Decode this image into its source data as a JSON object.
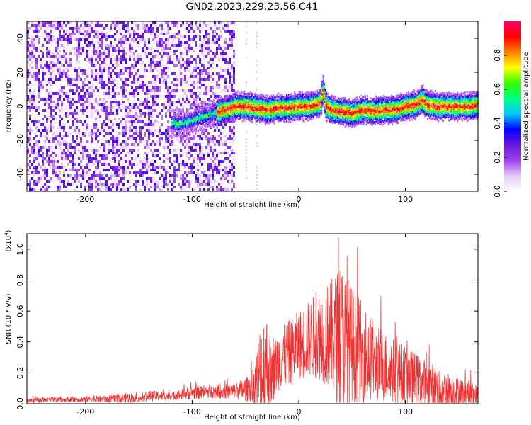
{
  "title": "GN02.2023.229.23.56.C41",
  "chart_data": [
    {
      "type": "heatmap",
      "name": "spectrogram",
      "xlabel": "Height of straight line (km)",
      "ylabel": "Frequency (Hz)",
      "xlim": [
        -255,
        168
      ],
      "ylim": [
        -50,
        50
      ],
      "x_ticks": [
        -200,
        -100,
        0,
        100
      ],
      "x_tick_labels": [
        "-200",
        "-100",
        "0",
        "100"
      ],
      "y_ticks": [
        -40,
        -20,
        0,
        20,
        40
      ],
      "y_tick_labels": [
        "-40",
        "-20",
        "0",
        "20",
        "40"
      ],
      "noise_region_x": [
        -255,
        -60
      ],
      "signal_start_x": -120,
      "signal_track": {
        "x": [
          -120,
          -110,
          -100,
          -90,
          -80,
          -70,
          -60,
          -50,
          -40,
          -30,
          -20,
          -10,
          0,
          10,
          20,
          22,
          25,
          30,
          40,
          50,
          60,
          70,
          80,
          90,
          100,
          110,
          115,
          120,
          130,
          140,
          150,
          160,
          168
        ],
        "freq": [
          -10,
          -10,
          -8,
          -6,
          -4,
          -2,
          0,
          0,
          -1,
          -2,
          -1,
          -1,
          0,
          0,
          2,
          10,
          0,
          -2,
          -3,
          -4,
          -2,
          -3,
          -2,
          -2,
          0,
          1,
          4,
          1,
          0,
          0,
          0,
          0,
          1
        ]
      },
      "colorbar": {
        "label": "Normalized spectral amplitude",
        "range": [
          0.0,
          1.0
        ],
        "ticks": [
          0.0,
          0.2,
          0.4,
          0.6,
          0.8
        ],
        "tick_labels": [
          "0.0",
          "0.2",
          "0.4",
          "0.6",
          "0.8"
        ],
        "colors": [
          "#ffffff",
          "#e6c9f7",
          "#a040f0",
          "#6a1bd6",
          "#0000ff",
          "#00c8ff",
          "#00ff80",
          "#33ff00",
          "#ffff00",
          "#ff8000",
          "#ff0000",
          "#ff0066"
        ]
      }
    },
    {
      "type": "line",
      "name": "snr",
      "xlabel": "Height of straight line (km)",
      "ylabel": "SNR (10 * v/v)",
      "ylabel_scale": "(x10",
      "ylabel_scale_exp": "4",
      "ylabel_scale_close": ")",
      "xlim": [
        -255,
        168
      ],
      "ylim": [
        0.0,
        1.1
      ],
      "x_ticks": [
        -200,
        -100,
        0,
        100
      ],
      "x_tick_labels": [
        "-200",
        "-100",
        "0",
        "100"
      ],
      "y_ticks": [
        0.0,
        0.2,
        0.4,
        0.6,
        0.8,
        1.0
      ],
      "y_tick_labels": [
        "0.0",
        "0.2",
        "0.4",
        "0.6",
        "0.8",
        "1.0"
      ],
      "color": "#f03030",
      "envelope": {
        "x": [
          -255,
          -200,
          -170,
          -160,
          -150,
          -140,
          -120,
          -100,
          -80,
          -60,
          -45,
          -40,
          -35,
          -30,
          -25,
          -20,
          -10,
          0,
          10,
          20,
          30,
          40,
          45,
          50,
          60,
          70,
          80,
          100,
          120,
          140,
          160,
          168
        ],
        "base": [
          0.02,
          0.03,
          0.03,
          0.04,
          0.03,
          0.05,
          0.05,
          0.07,
          0.08,
          0.08,
          0.1,
          0.14,
          0.2,
          0.25,
          0.18,
          0.28,
          0.32,
          0.38,
          0.42,
          0.45,
          0.44,
          0.42,
          0.4,
          0.38,
          0.33,
          0.28,
          0.24,
          0.18,
          0.12,
          0.08,
          0.06,
          0.05
        ],
        "amp": [
          0.02,
          0.02,
          0.03,
          0.04,
          0.02,
          0.04,
          0.03,
          0.05,
          0.05,
          0.06,
          0.1,
          0.2,
          0.45,
          0.38,
          0.2,
          0.22,
          0.24,
          0.25,
          0.28,
          0.33,
          0.4,
          0.55,
          0.5,
          0.42,
          0.36,
          0.3,
          0.26,
          0.22,
          0.18,
          0.14,
          0.1,
          0.08
        ]
      }
    }
  ]
}
